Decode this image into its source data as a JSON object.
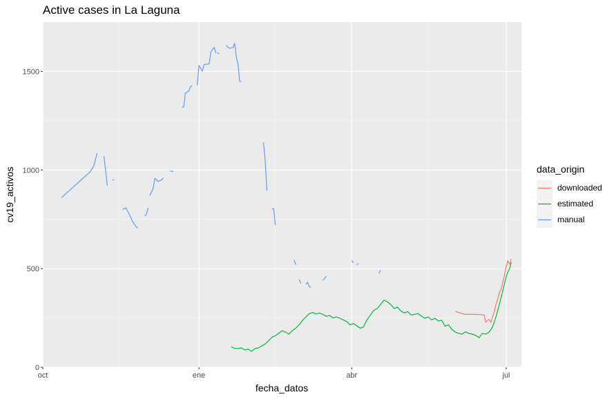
{
  "chart_data": {
    "type": "line",
    "title": "Active cases in La Laguna",
    "xlabel": "fecha_datos",
    "ylabel": "cv19_activos",
    "x_ticks": [
      "oct",
      "ene",
      "abr",
      "jul"
    ],
    "y_ticks": [
      0,
      500,
      1000,
      1500
    ],
    "xlim": [
      "2020-10-01",
      "2021-07-10"
    ],
    "ylim": [
      0,
      1750
    ],
    "grid": true,
    "legend": {
      "title": "data_origin",
      "position": "right"
    },
    "colors": {
      "downloaded": "#F8766D",
      "estimated": "#00BA38",
      "manual": "#619CFF",
      "panel": "#EBEBEB"
    },
    "series": [
      {
        "name": "downloaded",
        "segments": [
          [
            [
              "2021-06-01",
              283
            ],
            [
              "2021-06-05",
              272
            ],
            [
              "2021-06-07",
              268
            ],
            [
              "2021-06-12",
              268
            ],
            [
              "2021-06-16",
              267
            ],
            [
              "2021-06-18",
              265
            ],
            [
              "2021-06-19",
              228
            ],
            [
              "2021-06-20",
              238
            ],
            [
              "2021-06-21",
              242
            ],
            [
              "2021-06-22",
              228
            ],
            [
              "2021-06-23",
              255
            ],
            [
              "2021-06-24",
              282
            ],
            [
              "2021-06-25",
              318
            ],
            [
              "2021-06-26",
              345
            ],
            [
              "2021-06-27",
              380
            ],
            [
              "2021-06-28",
              395
            ],
            [
              "2021-06-29",
              432
            ],
            [
              "2021-06-30",
              467
            ],
            [
              "2021-07-01",
              508
            ],
            [
              "2021-07-02",
              540
            ],
            [
              "2021-07-03",
              522
            ],
            [
              "2021-07-04",
              548
            ]
          ]
        ]
      },
      {
        "name": "estimated",
        "segments": [
          [
            [
              "2021-01-20",
              105
            ],
            [
              "2021-01-22",
              96
            ],
            [
              "2021-01-24",
              95
            ],
            [
              "2021-01-26",
              98
            ],
            [
              "2021-01-28",
              88
            ],
            [
              "2021-01-30",
              92
            ],
            [
              "2021-02-01",
              80
            ],
            [
              "2021-02-03",
              95
            ],
            [
              "2021-02-05",
              98
            ],
            [
              "2021-02-07",
              108
            ],
            [
              "2021-02-09",
              118
            ],
            [
              "2021-02-11",
              135
            ],
            [
              "2021-02-13",
              152
            ],
            [
              "2021-02-15",
              160
            ],
            [
              "2021-02-17",
              172
            ],
            [
              "2021-02-19",
              185
            ],
            [
              "2021-02-21",
              178
            ],
            [
              "2021-02-23",
              168
            ],
            [
              "2021-02-25",
              185
            ],
            [
              "2021-02-27",
              198
            ],
            [
              "2021-03-01",
              215
            ],
            [
              "2021-03-03",
              238
            ],
            [
              "2021-03-05",
              255
            ],
            [
              "2021-03-07",
              272
            ],
            [
              "2021-03-09",
              278
            ],
            [
              "2021-03-11",
              270
            ],
            [
              "2021-03-13",
              275
            ],
            [
              "2021-03-15",
              268
            ],
            [
              "2021-03-17",
              258
            ],
            [
              "2021-03-19",
              262
            ],
            [
              "2021-03-21",
              250
            ],
            [
              "2021-03-23",
              255
            ],
            [
              "2021-03-25",
              248
            ],
            [
              "2021-03-27",
              240
            ],
            [
              "2021-03-29",
              232
            ],
            [
              "2021-03-31",
              215
            ],
            [
              "2021-04-02",
              222
            ],
            [
              "2021-04-04",
              210
            ],
            [
              "2021-04-06",
              198
            ],
            [
              "2021-04-08",
              205
            ],
            [
              "2021-04-10",
              240
            ],
            [
              "2021-04-12",
              265
            ],
            [
              "2021-04-14",
              288
            ],
            [
              "2021-04-16",
              298
            ],
            [
              "2021-04-18",
              318
            ],
            [
              "2021-04-20",
              340
            ],
            [
              "2021-04-22",
              332
            ],
            [
              "2021-04-24",
              318
            ],
            [
              "2021-04-26",
              298
            ],
            [
              "2021-04-28",
              305
            ],
            [
              "2021-04-30",
              285
            ],
            [
              "2021-05-02",
              275
            ],
            [
              "2021-05-04",
              282
            ],
            [
              "2021-05-06",
              265
            ],
            [
              "2021-05-08",
              268
            ],
            [
              "2021-05-10",
              272
            ],
            [
              "2021-05-12",
              260
            ],
            [
              "2021-05-14",
              248
            ],
            [
              "2021-05-16",
              255
            ],
            [
              "2021-05-18",
              240
            ],
            [
              "2021-05-20",
              248
            ],
            [
              "2021-05-22",
              235
            ],
            [
              "2021-05-24",
              238
            ],
            [
              "2021-05-26",
              208
            ],
            [
              "2021-05-28",
              215
            ],
            [
              "2021-05-30",
              192
            ],
            [
              "2021-06-01",
              178
            ],
            [
              "2021-06-03",
              172
            ],
            [
              "2021-06-05",
              168
            ],
            [
              "2021-06-07",
              180
            ],
            [
              "2021-06-09",
              172
            ],
            [
              "2021-06-11",
              168
            ],
            [
              "2021-06-13",
              162
            ],
            [
              "2021-06-15",
              150
            ],
            [
              "2021-06-17",
              172
            ],
            [
              "2021-06-19",
              168
            ],
            [
              "2021-06-21",
              178
            ],
            [
              "2021-06-23",
              205
            ],
            [
              "2021-06-25",
              255
            ],
            [
              "2021-06-27",
              320
            ],
            [
              "2021-06-29",
              388
            ],
            [
              "2021-07-01",
              460
            ],
            [
              "2021-07-02",
              482
            ],
            [
              "2021-07-03",
              500
            ],
            [
              "2021-07-04",
              532
            ]
          ]
        ]
      },
      {
        "name": "manual",
        "segments": [
          [
            [
              "2020-10-12",
              860
            ],
            [
              "2020-10-29",
              992
            ],
            [
              "2020-10-31",
              1020
            ],
            [
              "2020-11-02",
              1085
            ]
          ],
          [
            [
              "2020-11-06",
              1070
            ],
            [
              "2020-11-08",
              920
            ]
          ],
          [
            [
              "2020-11-11",
              952
            ],
            [
              "2020-11-12",
              948
            ]
          ],
          [
            [
              "2020-11-17",
              800
            ],
            [
              "2020-11-19",
              808
            ],
            [
              "2020-11-21",
              775
            ],
            [
              "2020-11-23",
              738
            ],
            [
              "2020-11-25",
              712
            ],
            [
              "2020-11-26",
              706
            ]
          ],
          [
            [
              "2020-11-30",
              768
            ],
            [
              "2020-12-01",
              775
            ],
            [
              "2020-12-02",
              808
            ]
          ],
          [
            [
              "2020-12-03",
              870
            ],
            [
              "2020-12-05",
              905
            ],
            [
              "2020-12-06",
              958
            ],
            [
              "2020-12-08",
              942
            ],
            [
              "2020-12-10",
              950
            ],
            [
              "2020-12-11",
              960
            ]
          ],
          [
            [
              "2020-12-15",
              995
            ],
            [
              "2020-12-17",
              992
            ]
          ],
          [
            [
              "2020-12-22",
              1318
            ],
            [
              "2020-12-23",
              1320
            ],
            [
              "2020-12-24",
              1390
            ],
            [
              "2020-12-26",
              1400
            ],
            [
              "2020-12-27",
              1422
            ],
            [
              "2020-12-28",
              1428
            ]
          ],
          [
            [
              "2020-12-31",
              1430
            ],
            [
              "2021-01-01",
              1530
            ],
            [
              "2021-01-03",
              1502
            ],
            [
              "2021-01-04",
              1535
            ],
            [
              "2021-01-07",
              1538
            ],
            [
              "2021-01-08",
              1600
            ],
            [
              "2021-01-10",
              1622
            ],
            [
              "2021-01-11",
              1592
            ]
          ],
          [
            [
              "2021-01-12",
              1594
            ],
            [
              "2021-01-13",
              1590
            ]
          ],
          [
            [
              "2021-01-17",
              1632
            ],
            [
              "2021-01-18",
              1622
            ],
            [
              "2021-01-19",
              1618
            ],
            [
              "2021-01-21",
              1620
            ],
            [
              "2021-01-22",
              1642
            ],
            [
              "2021-01-23",
              1575
            ],
            [
              "2021-01-24",
              1535
            ],
            [
              "2021-01-25",
              1450
            ],
            [
              "2021-01-26",
              1448
            ]
          ],
          [
            [
              "2021-02-08",
              1140
            ],
            [
              "2021-02-09",
              1050
            ],
            [
              "2021-02-10",
              895
            ]
          ],
          [
            [
              "2021-02-13",
              800
            ],
            [
              "2021-02-14",
              805
            ],
            [
              "2021-02-15",
              720
            ]
          ],
          [
            [
              "2021-02-26",
              545
            ],
            [
              "2021-02-27",
              520
            ]
          ],
          [
            [
              "2021-03-01",
              445
            ],
            [
              "2021-03-02",
              425
            ]
          ],
          [
            [
              "2021-03-05",
              420
            ],
            [
              "2021-03-06",
              432
            ],
            [
              "2021-03-07",
              408
            ],
            [
              "2021-03-08",
              406
            ]
          ],
          [
            [
              "2021-03-15",
              440
            ],
            [
              "2021-03-16",
              450
            ],
            [
              "2021-03-17",
              462
            ]
          ],
          [
            [
              "2021-04-01",
              542
            ],
            [
              "2021-04-02",
              530
            ]
          ],
          [
            [
              "2021-04-04",
              520
            ],
            [
              "2021-04-05",
              526
            ]
          ],
          [
            [
              "2021-04-17",
              476
            ],
            [
              "2021-04-18",
              492
            ]
          ]
        ]
      }
    ]
  }
}
